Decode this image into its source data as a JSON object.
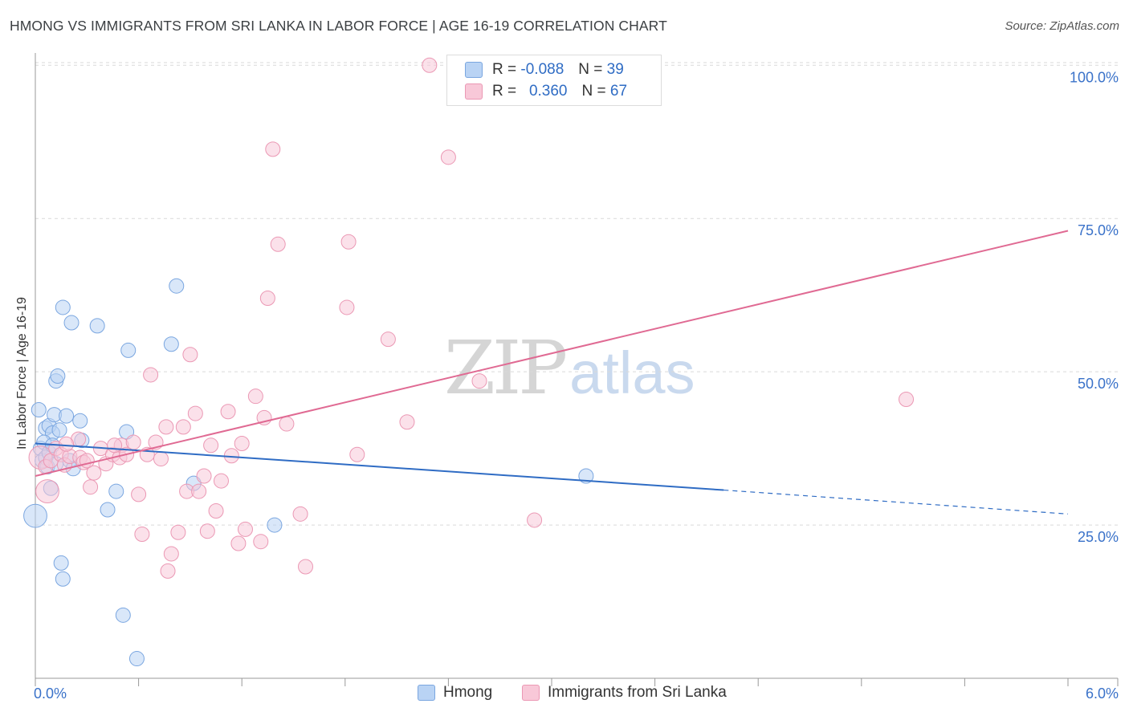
{
  "title": "HMONG VS IMMIGRANTS FROM SRI LANKA IN LABOR FORCE | AGE 16-19 CORRELATION CHART",
  "source": "Source: ZipAtlas.com",
  "watermark": {
    "zip": "ZIP",
    "atlas": "atlas"
  },
  "legend": {
    "r_label": "R =",
    "n_label": "N =",
    "hmong": {
      "r": "-0.088",
      "n": "39"
    },
    "srilanka": {
      "r": "0.360",
      "n": "67"
    }
  },
  "colors": {
    "hmong_fill": "#b9d3f4",
    "hmong_stroke": "#7aa6e0",
    "hmong_line": "#2f6cc4",
    "srilanka_fill": "#f8c8d8",
    "srilanka_stroke": "#eb98b4",
    "srilanka_line": "#e06a93",
    "axis_label": "#3a72c9",
    "grid": "#d9d9d9"
  },
  "chart_data": {
    "type": "scatter",
    "title": "HMONG VS IMMIGRANTS FROM SRI LANKA IN LABOR FORCE | AGE 16-19 CORRELATION CHART",
    "xlabel": "",
    "ylabel": "In Labor Force | Age 16-19",
    "xlim": [
      0,
      6
    ],
    "ylim": [
      0,
      102
    ],
    "x_tick_labels": [
      {
        "value": 0,
        "label": "0.0%"
      },
      {
        "value": 6,
        "label": "6.0%"
      }
    ],
    "y_ticks": [
      {
        "value": 25,
        "label": "25.0%"
      },
      {
        "value": 50,
        "label": "50.0%"
      },
      {
        "value": 75,
        "label": "75.0%"
      },
      {
        "value": 100,
        "label": "100.0%"
      }
    ],
    "series": [
      {
        "name": "Hmong",
        "trend": {
          "x0": 0,
          "y0": 38.3,
          "x1": 4.0,
          "y1": 30.7,
          "dashed_to_x": 6.0,
          "dashed_to_y": 26.8
        },
        "points": [
          {
            "x": 0.0,
            "y": 26.5,
            "size": 1.6
          },
          {
            "x": 0.02,
            "y": 43.8
          },
          {
            "x": 0.03,
            "y": 37.5
          },
          {
            "x": 0.04,
            "y": 35.5
          },
          {
            "x": 0.06,
            "y": 40.8
          },
          {
            "x": 0.06,
            "y": 36.0
          },
          {
            "x": 0.07,
            "y": 34.5
          },
          {
            "x": 0.08,
            "y": 41.2
          },
          {
            "x": 0.09,
            "y": 31.0
          },
          {
            "x": 0.1,
            "y": 40.0
          },
          {
            "x": 0.11,
            "y": 43.0
          },
          {
            "x": 0.12,
            "y": 48.5
          },
          {
            "x": 0.13,
            "y": 49.3
          },
          {
            "x": 0.14,
            "y": 40.5
          },
          {
            "x": 0.15,
            "y": 18.8
          },
          {
            "x": 0.16,
            "y": 16.2
          },
          {
            "x": 0.16,
            "y": 60.5
          },
          {
            "x": 0.18,
            "y": 42.8
          },
          {
            "x": 0.2,
            "y": 35.5
          },
          {
            "x": 0.21,
            "y": 58.0
          },
          {
            "x": 0.22,
            "y": 34.2
          },
          {
            "x": 0.26,
            "y": 42.0
          },
          {
            "x": 0.27,
            "y": 38.8
          },
          {
            "x": 0.36,
            "y": 57.5
          },
          {
            "x": 0.42,
            "y": 27.5
          },
          {
            "x": 0.47,
            "y": 30.5
          },
          {
            "x": 0.51,
            "y": 10.3
          },
          {
            "x": 0.53,
            "y": 40.2
          },
          {
            "x": 0.54,
            "y": 53.5
          },
          {
            "x": 0.59,
            "y": 3.2
          },
          {
            "x": 0.79,
            "y": 54.5
          },
          {
            "x": 0.82,
            "y": 64.0
          },
          {
            "x": 0.92,
            "y": 31.8
          },
          {
            "x": 1.39,
            "y": 25.0
          },
          {
            "x": 3.2,
            "y": 33.0
          },
          {
            "x": 0.05,
            "y": 38.5
          },
          {
            "x": 0.08,
            "y": 36.8
          },
          {
            "x": 0.12,
            "y": 35.0
          },
          {
            "x": 0.1,
            "y": 38.0
          }
        ]
      },
      {
        "name": "Immigrants from Sri Lanka",
        "trend": {
          "x0": 0,
          "y0": 33.0,
          "x1": 6.0,
          "y1": 73.0
        },
        "points": [
          {
            "x": 0.03,
            "y": 36.0,
            "size": 1.6
          },
          {
            "x": 0.07,
            "y": 30.5,
            "size": 1.6
          },
          {
            "x": 0.06,
            "y": 34.5
          },
          {
            "x": 0.09,
            "y": 35.5
          },
          {
            "x": 0.12,
            "y": 37.5
          },
          {
            "x": 0.15,
            "y": 36.5
          },
          {
            "x": 0.17,
            "y": 34.8
          },
          {
            "x": 0.2,
            "y": 36.2
          },
          {
            "x": 0.25,
            "y": 39.0
          },
          {
            "x": 0.26,
            "y": 36.0
          },
          {
            "x": 0.28,
            "y": 35.2
          },
          {
            "x": 0.32,
            "y": 31.2
          },
          {
            "x": 0.34,
            "y": 33.5
          },
          {
            "x": 0.38,
            "y": 37.5
          },
          {
            "x": 0.41,
            "y": 35.0
          },
          {
            "x": 0.45,
            "y": 36.5
          },
          {
            "x": 0.49,
            "y": 36.0
          },
          {
            "x": 0.5,
            "y": 38.0
          },
          {
            "x": 0.53,
            "y": 36.5
          },
          {
            "x": 0.57,
            "y": 38.5
          },
          {
            "x": 0.6,
            "y": 30.0
          },
          {
            "x": 0.62,
            "y": 23.5
          },
          {
            "x": 0.65,
            "y": 36.5
          },
          {
            "x": 0.67,
            "y": 49.5
          },
          {
            "x": 0.7,
            "y": 38.5
          },
          {
            "x": 0.73,
            "y": 35.8
          },
          {
            "x": 0.76,
            "y": 41.0
          },
          {
            "x": 0.77,
            "y": 17.5
          },
          {
            "x": 0.79,
            "y": 20.3
          },
          {
            "x": 0.83,
            "y": 23.8
          },
          {
            "x": 0.86,
            "y": 41.0
          },
          {
            "x": 0.88,
            "y": 30.5
          },
          {
            "x": 0.9,
            "y": 52.8
          },
          {
            "x": 0.93,
            "y": 43.2
          },
          {
            "x": 0.95,
            "y": 30.5
          },
          {
            "x": 0.98,
            "y": 33.0
          },
          {
            "x": 1.0,
            "y": 24.0
          },
          {
            "x": 1.02,
            "y": 38.0
          },
          {
            "x": 1.05,
            "y": 27.3
          },
          {
            "x": 1.08,
            "y": 32.2
          },
          {
            "x": 1.12,
            "y": 43.5
          },
          {
            "x": 1.14,
            "y": 36.3
          },
          {
            "x": 1.18,
            "y": 22.0
          },
          {
            "x": 1.2,
            "y": 38.3
          },
          {
            "x": 1.22,
            "y": 24.3
          },
          {
            "x": 1.28,
            "y": 46.0
          },
          {
            "x": 1.31,
            "y": 22.3
          },
          {
            "x": 1.33,
            "y": 42.5
          },
          {
            "x": 1.35,
            "y": 62.0
          },
          {
            "x": 1.38,
            "y": 86.3
          },
          {
            "x": 1.41,
            "y": 70.8
          },
          {
            "x": 1.46,
            "y": 41.5
          },
          {
            "x": 1.54,
            "y": 26.8
          },
          {
            "x": 1.57,
            "y": 18.2
          },
          {
            "x": 1.81,
            "y": 60.5
          },
          {
            "x": 1.82,
            "y": 71.2
          },
          {
            "x": 1.87,
            "y": 36.5
          },
          {
            "x": 2.05,
            "y": 55.3
          },
          {
            "x": 2.16,
            "y": 41.8
          },
          {
            "x": 2.29,
            "y": 100.0
          },
          {
            "x": 2.4,
            "y": 85.0
          },
          {
            "x": 2.58,
            "y": 48.5
          },
          {
            "x": 2.9,
            "y": 25.8
          },
          {
            "x": 5.06,
            "y": 45.5
          },
          {
            "x": 0.46,
            "y": 38.0
          },
          {
            "x": 0.3,
            "y": 35.5
          },
          {
            "x": 0.18,
            "y": 38.2
          }
        ]
      }
    ],
    "legend_items": [
      "Hmong",
      "Immigrants from Sri Lanka"
    ]
  }
}
